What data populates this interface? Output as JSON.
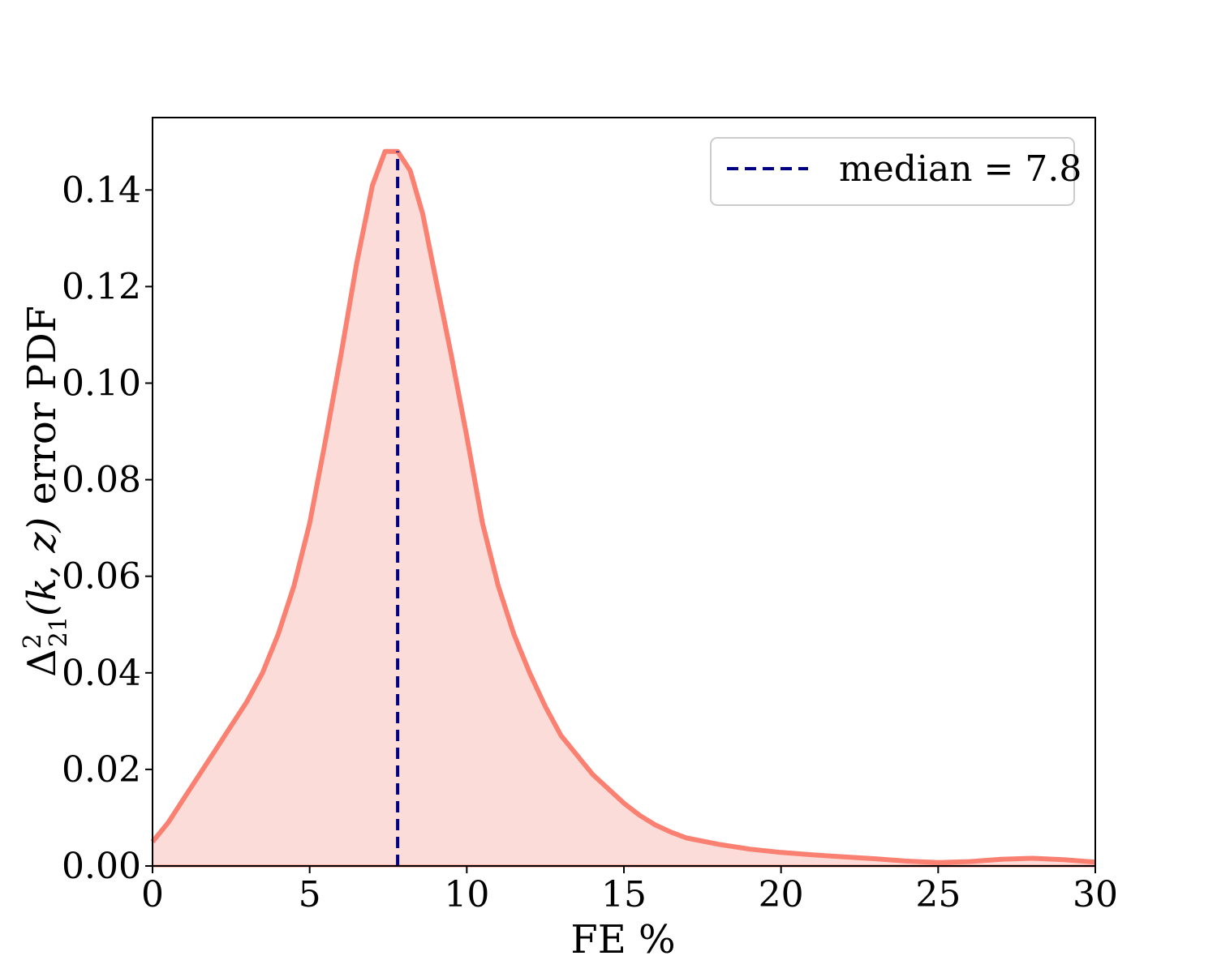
{
  "chart_data": {
    "type": "area",
    "xlabel": "FE %",
    "ylabel_parts": {
      "delta": "Δ",
      "sup": "2",
      "sub": "21",
      "args": "(k, z)",
      "rest": " error PDF"
    },
    "xlim": [
      0,
      30
    ],
    "ylim": [
      0,
      0.155
    ],
    "x_ticks": [
      0,
      5,
      10,
      15,
      20,
      25,
      30
    ],
    "x_tick_labels": [
      "0",
      "5",
      "10",
      "15",
      "20",
      "25",
      "30"
    ],
    "y_ticks": [
      0.0,
      0.02,
      0.04,
      0.06,
      0.08,
      0.1,
      0.12,
      0.14
    ],
    "y_tick_labels": [
      "0.00",
      "0.02",
      "0.04",
      "0.06",
      "0.08",
      "0.10",
      "0.12",
      "0.14"
    ],
    "grid": false,
    "legend_placement": "top-right",
    "series": [
      {
        "kind": "pdf-curve",
        "color": "#fa8072",
        "fill_color": "#fcdcd8",
        "x": [
          0,
          0.5,
          1.0,
          1.5,
          2.0,
          2.5,
          3.0,
          3.5,
          4.0,
          4.5,
          5.0,
          5.5,
          6.0,
          6.5,
          7.0,
          7.4,
          7.8,
          8.2,
          8.6,
          9.0,
          9.5,
          10.0,
          10.5,
          11.0,
          11.5,
          12.0,
          12.5,
          13.0,
          13.5,
          14.0,
          14.5,
          15.0,
          15.5,
          16.0,
          16.5,
          17.0,
          18.0,
          19.0,
          20.0,
          21.0,
          22.0,
          23.0,
          24.0,
          25.0,
          26.0,
          27.0,
          28.0,
          29.0,
          30.0
        ],
        "y": [
          0.005,
          0.009,
          0.014,
          0.019,
          0.024,
          0.029,
          0.034,
          0.04,
          0.048,
          0.058,
          0.071,
          0.088,
          0.106,
          0.125,
          0.141,
          0.148,
          0.148,
          0.144,
          0.135,
          0.122,
          0.106,
          0.089,
          0.071,
          0.058,
          0.048,
          0.04,
          0.033,
          0.027,
          0.023,
          0.019,
          0.016,
          0.013,
          0.0105,
          0.0085,
          0.007,
          0.0058,
          0.0045,
          0.0035,
          0.0028,
          0.0023,
          0.0019,
          0.0015,
          0.001,
          0.0007,
          0.0009,
          0.0014,
          0.0016,
          0.0013,
          0.0008
        ]
      },
      {
        "kind": "vertical-dashed-line",
        "name": "median = 7.8",
        "x_value": 7.8,
        "color": "#000080"
      }
    ],
    "legend": [
      {
        "label": "median = 7.8",
        "color": "#000080",
        "style": "dashed"
      }
    ]
  }
}
